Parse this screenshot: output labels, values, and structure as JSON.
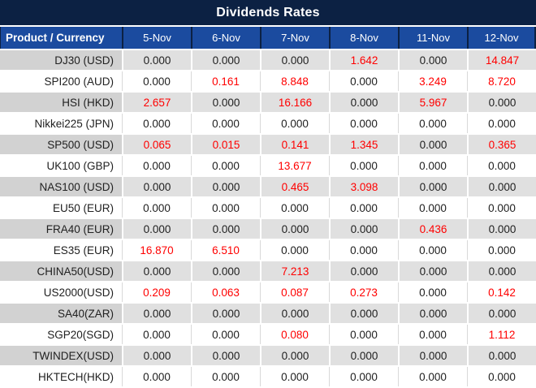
{
  "title": "Dividends Rates",
  "table": {
    "product_header": "Product / Currency",
    "date_headers": [
      "5-Nov",
      "6-Nov",
      "7-Nov",
      "8-Nov",
      "11-Nov",
      "12-Nov"
    ],
    "rows": [
      {
        "product": "DJ30 (USD)",
        "values": [
          "0.000",
          "0.000",
          "0.000",
          "1.642",
          "0.000",
          "14.847"
        ]
      },
      {
        "product": "SPI200 (AUD)",
        "values": [
          "0.000",
          "0.161",
          "8.848",
          "0.000",
          "3.249",
          "8.720"
        ]
      },
      {
        "product": "HSI (HKD)",
        "values": [
          "2.657",
          "0.000",
          "16.166",
          "0.000",
          "5.967",
          "0.000"
        ]
      },
      {
        "product": "Nikkei225 (JPN)",
        "values": [
          "0.000",
          "0.000",
          "0.000",
          "0.000",
          "0.000",
          "0.000"
        ]
      },
      {
        "product": "SP500 (USD)",
        "values": [
          "0.065",
          "0.015",
          "0.141",
          "1.345",
          "0.000",
          "0.365"
        ]
      },
      {
        "product": "UK100 (GBP)",
        "values": [
          "0.000",
          "0.000",
          "13.677",
          "0.000",
          "0.000",
          "0.000"
        ]
      },
      {
        "product": "NAS100 (USD)",
        "values": [
          "0.000",
          "0.000",
          "0.465",
          "3.098",
          "0.000",
          "0.000"
        ]
      },
      {
        "product": "EU50 (EUR)",
        "values": [
          "0.000",
          "0.000",
          "0.000",
          "0.000",
          "0.000",
          "0.000"
        ]
      },
      {
        "product": "FRA40 (EUR)",
        "values": [
          "0.000",
          "0.000",
          "0.000",
          "0.000",
          "0.436",
          "0.000"
        ]
      },
      {
        "product": "ES35 (EUR)",
        "values": [
          "16.870",
          "6.510",
          "0.000",
          "0.000",
          "0.000",
          "0.000"
        ]
      },
      {
        "product": "CHINA50(USD)",
        "values": [
          "0.000",
          "0.000",
          "7.213",
          "0.000",
          "0.000",
          "0.000"
        ]
      },
      {
        "product": "US2000(USD)",
        "values": [
          "0.209",
          "0.063",
          "0.087",
          "0.273",
          "0.000",
          "0.142"
        ]
      },
      {
        "product": "SA40(ZAR)",
        "values": [
          "0.000",
          "0.000",
          "0.000",
          "0.000",
          "0.000",
          "0.000"
        ]
      },
      {
        "product": "SGP20(SGD)",
        "values": [
          "0.000",
          "0.000",
          "0.080",
          "0.000",
          "0.000",
          "1.112"
        ]
      },
      {
        "product": "TWINDEX(USD)",
        "values": [
          "0.000",
          "0.000",
          "0.000",
          "0.000",
          "0.000",
          "0.000"
        ]
      },
      {
        "product": "HKTECH(HKD)",
        "values": [
          "0.000",
          "0.000",
          "0.000",
          "0.000",
          "0.000",
          "0.000"
        ]
      }
    ]
  },
  "colors": {
    "title_bg": "#0c2143",
    "header_bg": "#1b4b9f",
    "header_text": "#ffffff",
    "zero_value_text": "#212121",
    "nonzero_value_text": "#ff0000",
    "stripe_product_bg": "#d2d2d2",
    "stripe_value_bg": "#e0e0e0",
    "separator": "#d9d9d9"
  }
}
